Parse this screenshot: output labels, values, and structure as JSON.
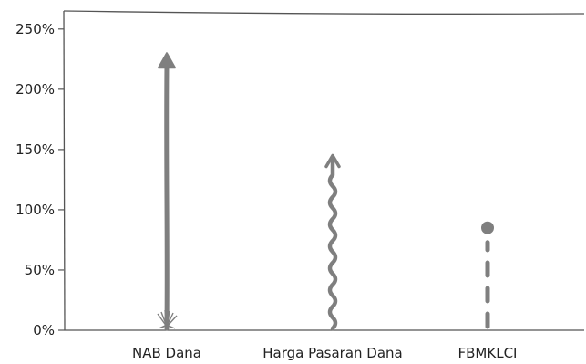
{
  "chart_data": {
    "type": "bar",
    "style": "hand-drawn arrows",
    "categories": [
      "NAB Dana",
      "Harga Pasaran Dana",
      "FBMKLCI"
    ],
    "values": [
      230,
      145,
      85
    ],
    "marks": [
      "straight-arrow",
      "wavy-arrow",
      "dashed-line-dot"
    ],
    "ylim": [
      0,
      265
    ],
    "yticks": [
      "0%",
      "50%",
      "100%",
      "150%",
      "200%",
      "250%"
    ],
    "title": "",
    "xlabel": "",
    "ylabel": "",
    "grid": false,
    "colors": {
      "mark": "#7f7f7f",
      "axis": "#555555",
      "text": "#222222"
    }
  }
}
